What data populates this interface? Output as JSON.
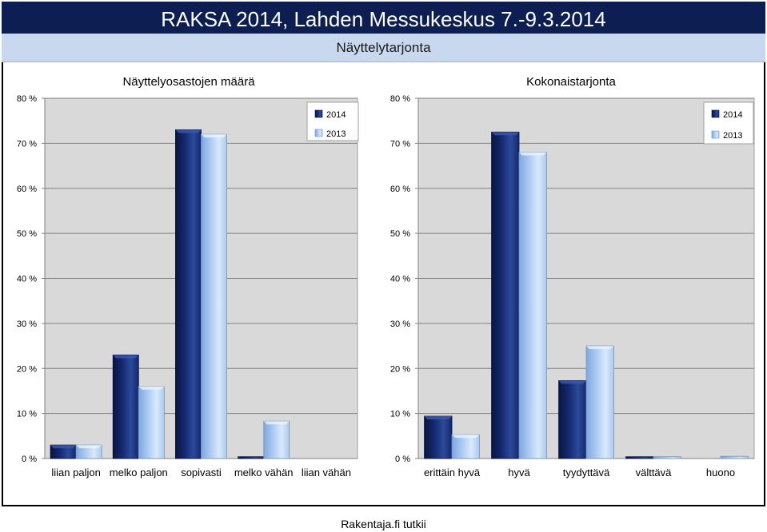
{
  "header": {
    "title": "RAKSA 2014, Lahden Messukeskus 7.-9.3.2014",
    "subtitle": "Näyttelytarjonta"
  },
  "footer": {
    "text": "Rakentaja.fi tutkii"
  },
  "colors": {
    "series_2014": "#13286e",
    "series_2014_dark": "#0a1640",
    "series_2014_light": "#2c4a9a",
    "series_2013": "#a9c9f2",
    "series_2013_dark": "#7fa7dc",
    "series_2013_light": "#d9e9fb",
    "plot_bg": "#d9d9d9",
    "grid": "#808080"
  },
  "chart_data": [
    {
      "type": "bar",
      "title": "Näyttelyosastojen määrä",
      "categories": [
        "liian paljon",
        "melko paljon",
        "sopivasti",
        "melko vähän",
        "liian vähän"
      ],
      "series": [
        {
          "name": "2014",
          "values": [
            3,
            23,
            73,
            0.4,
            0
          ]
        },
        {
          "name": "2013",
          "values": [
            3,
            16,
            72,
            8.3,
            0
          ]
        }
      ],
      "ylim": [
        0,
        80
      ],
      "yticks": [
        0,
        10,
        20,
        30,
        40,
        50,
        60,
        70,
        80
      ],
      "ytick_labels": [
        "0 %",
        "10 %",
        "20 %",
        "30 %",
        "40 %",
        "50 %",
        "60 %",
        "70 %",
        "80 %"
      ],
      "legend": [
        "2014",
        "2013"
      ],
      "legend_position": "top-right",
      "grid": true
    },
    {
      "type": "bar",
      "title": "Kokonaistarjonta",
      "categories": [
        "erittäin hyvä",
        "hyvä",
        "tyydyttävä",
        "välttävä",
        "huono"
      ],
      "series": [
        {
          "name": "2014",
          "values": [
            9.4,
            72.5,
            17.3,
            0.4,
            0
          ]
        },
        {
          "name": "2013",
          "values": [
            5.3,
            68,
            25,
            0.4,
            0.5
          ]
        }
      ],
      "ylim": [
        0,
        80
      ],
      "yticks": [
        0,
        10,
        20,
        30,
        40,
        50,
        60,
        70,
        80
      ],
      "ytick_labels": [
        "0 %",
        "10 %",
        "20 %",
        "30 %",
        "40 %",
        "50 %",
        "60 %",
        "70 %",
        "80 %"
      ],
      "legend": [
        "2014",
        "2013"
      ],
      "legend_position": "top-right",
      "grid": true
    }
  ]
}
